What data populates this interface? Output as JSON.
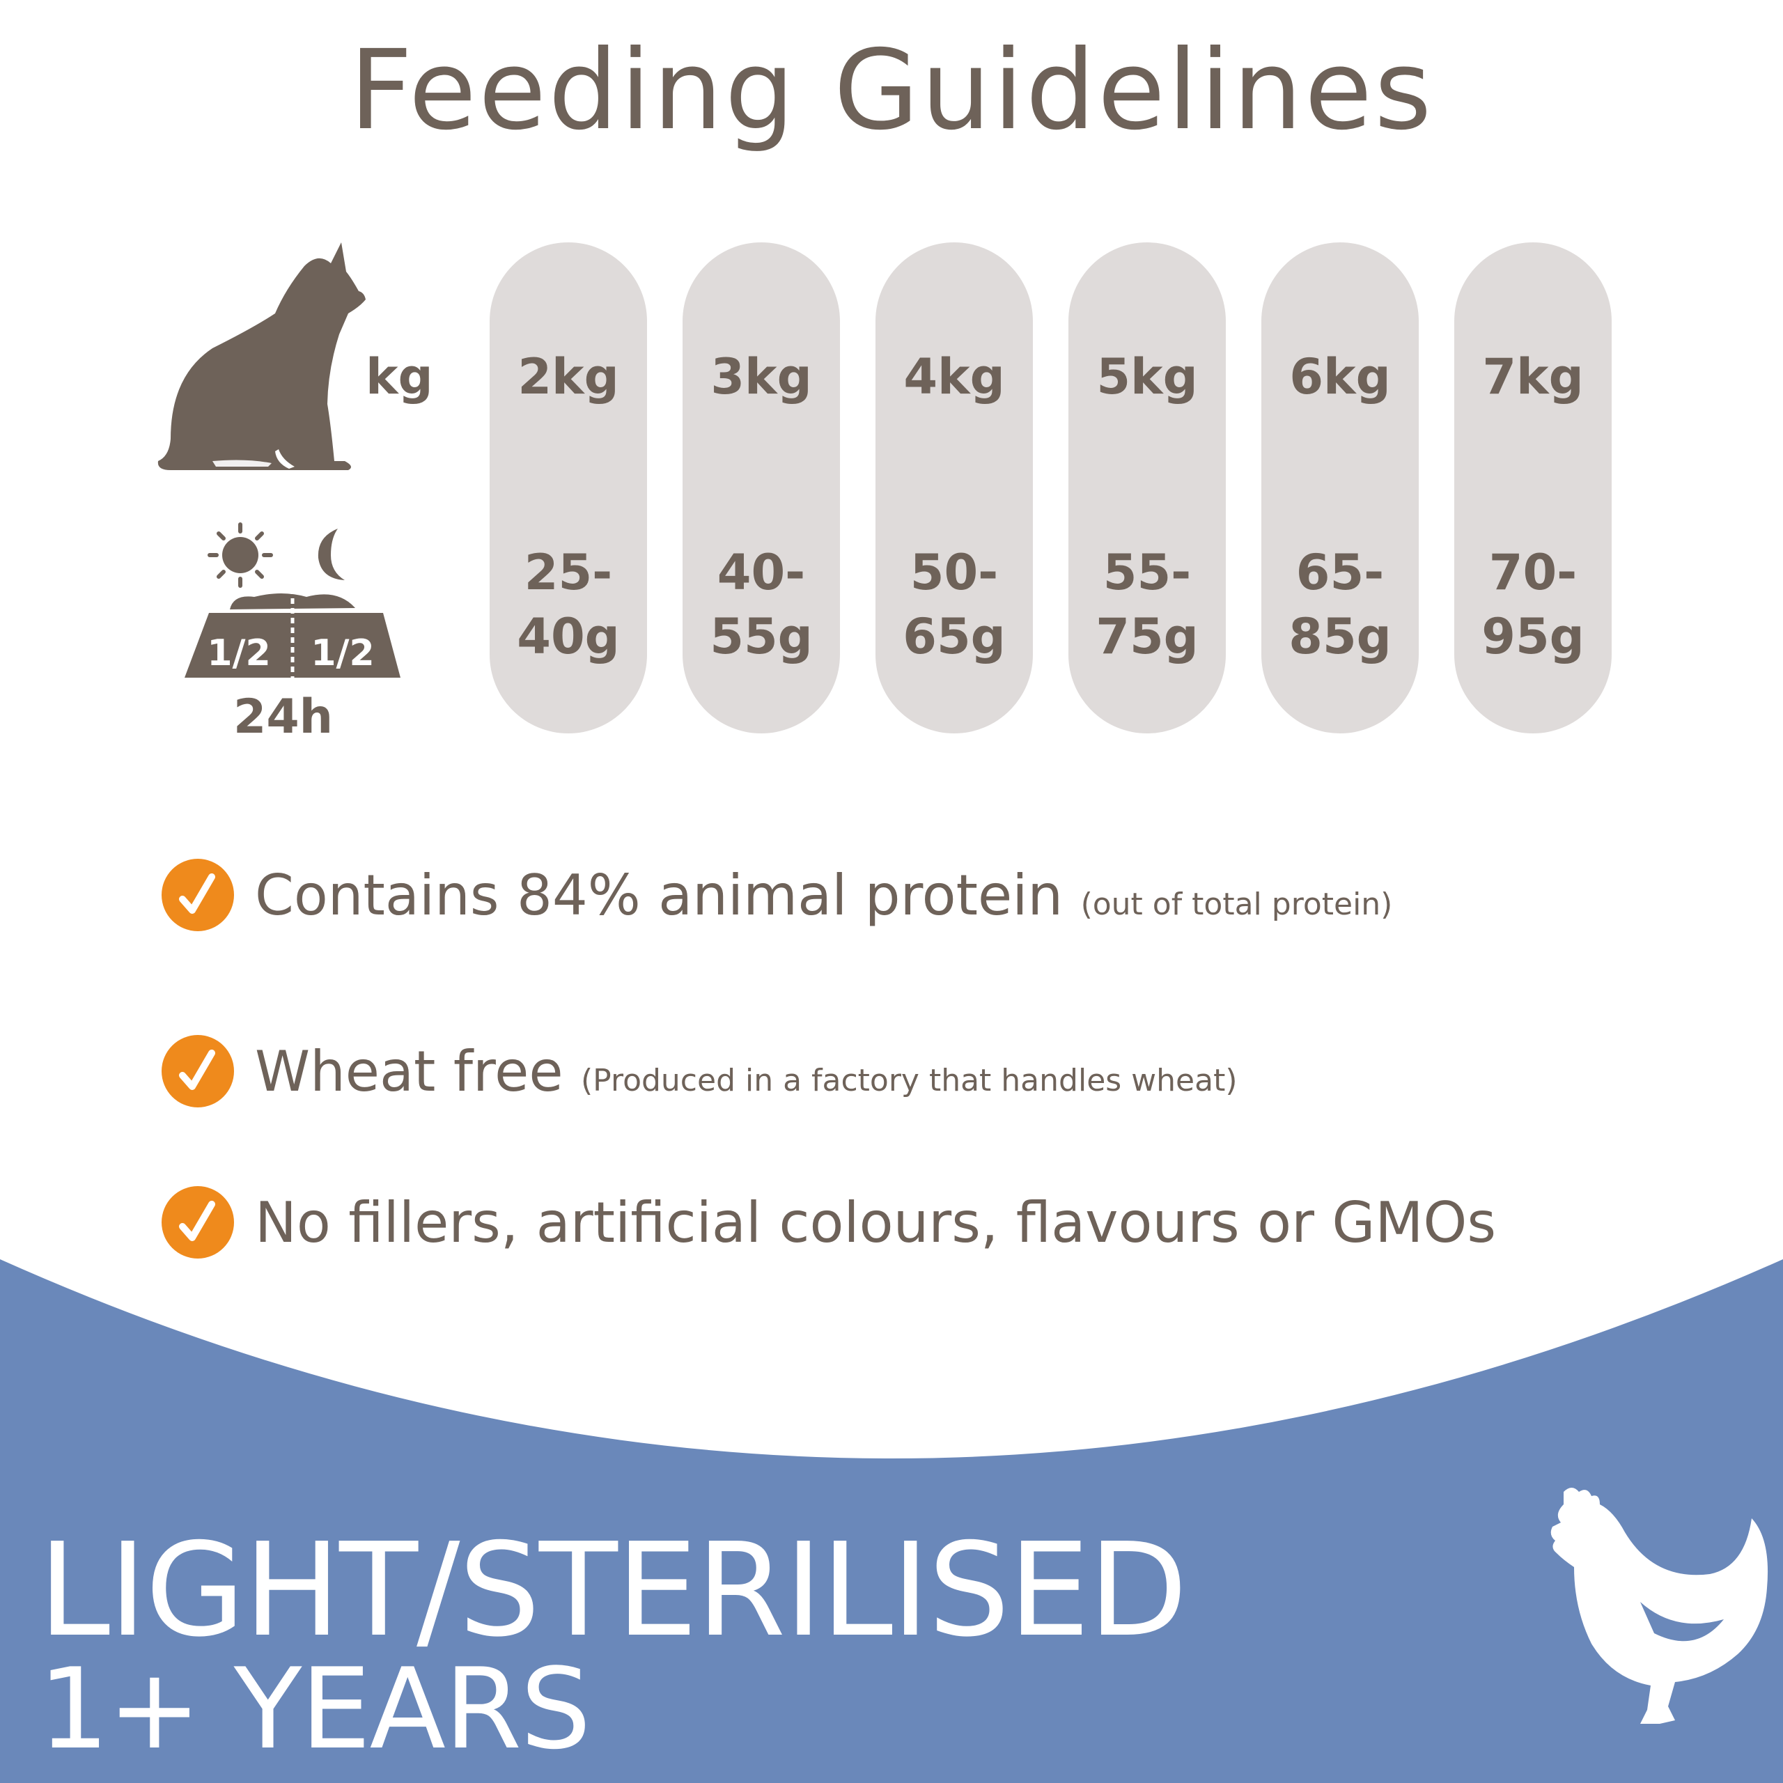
{
  "title": "Feeding Guidelines",
  "weight_unit_label": "kg",
  "daily_split": {
    "left": "1/2",
    "right": "1/2",
    "period": "24h"
  },
  "columns": [
    {
      "weight": "2kg",
      "amount": "25-\n40g"
    },
    {
      "weight": "3kg",
      "amount": "40-\n55g"
    },
    {
      "weight": "4kg",
      "amount": "50-\n65g"
    },
    {
      "weight": "5kg",
      "amount": "55-\n75g"
    },
    {
      "weight": "6kg",
      "amount": "65-\n85g"
    },
    {
      "weight": "7kg",
      "amount": "70-\n95g"
    }
  ],
  "features": [
    {
      "text": "Contains 84% animal protein",
      "note": "(out of total protein)"
    },
    {
      "text": "Wheat free",
      "note": "(Produced in a factory that handles wheat)"
    },
    {
      "text": "No fillers, artificial colours, flavours or GMOs",
      "note": ""
    }
  ],
  "product": {
    "line1": "LIGHT/STERILISED",
    "line2": "1+ YEARS"
  },
  "icons": [
    "cat-icon",
    "sun-icon",
    "moon-icon",
    "food-bowl-icon",
    "check-icon",
    "chicken-icon"
  ],
  "colors": {
    "text": "#6e6259",
    "pill": "#dfdbda",
    "check": "#ef8a1c",
    "band": "#6a88ba"
  }
}
